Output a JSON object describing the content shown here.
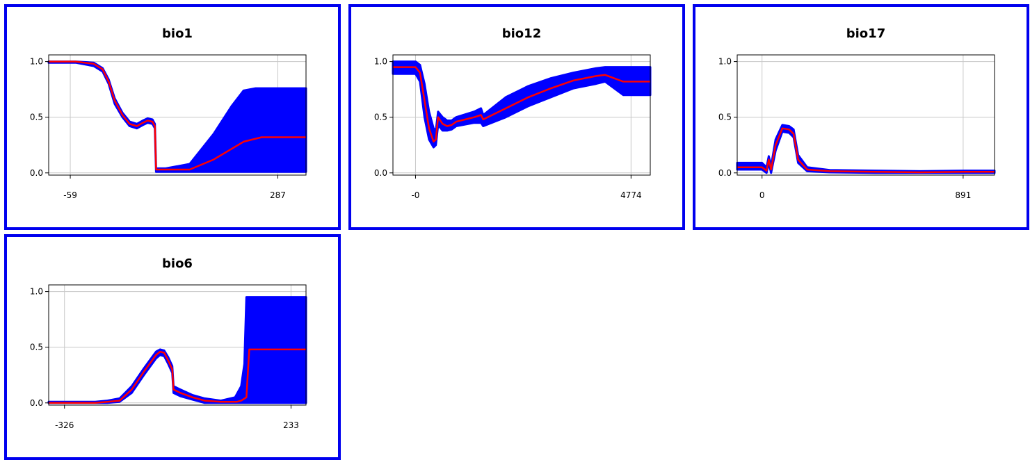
{
  "chart_data": [
    {
      "type": "area",
      "title": "bio1",
      "xlabel": "",
      "ylabel": "",
      "xlim": [
        -95,
        334
      ],
      "ylim": [
        0,
        1.0
      ],
      "yticks": [
        "0.0",
        "0.5",
        "1.0"
      ],
      "xticks": [
        -59,
        287
      ],
      "xtick_labels": [
        "-59",
        "287"
      ],
      "grid": true,
      "series": [
        {
          "role": "mean",
          "color": "#ff0000",
          "points": [
            [
              -95,
              1.0
            ],
            [
              -50,
              1.0
            ],
            [
              -20,
              0.98
            ],
            [
              -5,
              0.93
            ],
            [
              5,
              0.82
            ],
            [
              15,
              0.65
            ],
            [
              28,
              0.52
            ],
            [
              40,
              0.44
            ],
            [
              52,
              0.42
            ],
            [
              62,
              0.45
            ],
            [
              70,
              0.47
            ],
            [
              78,
              0.46
            ],
            [
              82,
              0.42
            ],
            [
              84,
              0.03
            ],
            [
              100,
              0.03
            ],
            [
              140,
              0.03
            ],
            [
              180,
              0.12
            ],
            [
              230,
              0.28
            ],
            [
              260,
              0.32
            ],
            [
              334,
              0.32
            ]
          ]
        },
        {
          "role": "band_upper",
          "color": "#0000ff",
          "points": [
            [
              -95,
              1.0
            ],
            [
              -50,
              1.0
            ],
            [
              -20,
              0.99
            ],
            [
              -5,
              0.94
            ],
            [
              5,
              0.84
            ],
            [
              15,
              0.67
            ],
            [
              28,
              0.54
            ],
            [
              40,
              0.46
            ],
            [
              52,
              0.44
            ],
            [
              62,
              0.47
            ],
            [
              70,
              0.49
            ],
            [
              78,
              0.48
            ],
            [
              82,
              0.44
            ],
            [
              84,
              0.04
            ],
            [
              100,
              0.04
            ],
            [
              140,
              0.08
            ],
            [
              180,
              0.35
            ],
            [
              210,
              0.6
            ],
            [
              230,
              0.74
            ],
            [
              250,
              0.76
            ],
            [
              334,
              0.76
            ]
          ]
        },
        {
          "role": "band_lower",
          "color": "#0000ff",
          "points": [
            [
              -95,
              0.99
            ],
            [
              -50,
              0.99
            ],
            [
              -20,
              0.96
            ],
            [
              -5,
              0.91
            ],
            [
              5,
              0.8
            ],
            [
              15,
              0.62
            ],
            [
              28,
              0.5
            ],
            [
              40,
              0.42
            ],
            [
              52,
              0.4
            ],
            [
              62,
              0.43
            ],
            [
              70,
              0.45
            ],
            [
              78,
              0.44
            ],
            [
              82,
              0.4
            ],
            [
              84,
              0.01
            ],
            [
              334,
              0.01
            ]
          ]
        }
      ]
    },
    {
      "type": "area",
      "title": "bio12",
      "xlabel": "",
      "ylabel": "",
      "xlim": [
        -500,
        5200
      ],
      "ylim": [
        0,
        1.0
      ],
      "yticks": [
        "0.0",
        "0.5",
        "1.0"
      ],
      "xticks": [
        0,
        4774
      ],
      "xtick_labels": [
        "-0",
        "4774"
      ],
      "grid": true,
      "series": [
        {
          "role": "mean",
          "color": "#ff0000",
          "points": [
            [
              -500,
              0.95
            ],
            [
              0,
              0.95
            ],
            [
              100,
              0.9
            ],
            [
              200,
              0.65
            ],
            [
              300,
              0.4
            ],
            [
              400,
              0.28
            ],
            [
              450,
              0.3
            ],
            [
              500,
              0.5
            ],
            [
              600,
              0.44
            ],
            [
              700,
              0.42
            ],
            [
              800,
              0.43
            ],
            [
              900,
              0.46
            ],
            [
              1300,
              0.5
            ],
            [
              1450,
              0.52
            ],
            [
              1500,
              0.48
            ],
            [
              2000,
              0.58
            ],
            [
              2500,
              0.68
            ],
            [
              3000,
              0.76
            ],
            [
              3500,
              0.83
            ],
            [
              4000,
              0.87
            ],
            [
              4200,
              0.88
            ],
            [
              4600,
              0.82
            ],
            [
              5200,
              0.82
            ]
          ]
        },
        {
          "role": "band_upper",
          "color": "#0000ff",
          "points": [
            [
              -500,
              1.0
            ],
            [
              0,
              1.0
            ],
            [
              100,
              0.97
            ],
            [
              200,
              0.8
            ],
            [
              300,
              0.55
            ],
            [
              400,
              0.4
            ],
            [
              450,
              0.38
            ],
            [
              500,
              0.55
            ],
            [
              600,
              0.5
            ],
            [
              700,
              0.47
            ],
            [
              800,
              0.47
            ],
            [
              900,
              0.5
            ],
            [
              1300,
              0.55
            ],
            [
              1450,
              0.58
            ],
            [
              1500,
              0.52
            ],
            [
              2000,
              0.68
            ],
            [
              2500,
              0.78
            ],
            [
              3000,
              0.85
            ],
            [
              3500,
              0.9
            ],
            [
              4000,
              0.94
            ],
            [
              4200,
              0.95
            ],
            [
              4600,
              0.95
            ],
            [
              5200,
              0.95
            ]
          ]
        },
        {
          "role": "band_lower",
          "color": "#0000ff",
          "points": [
            [
              -500,
              0.89
            ],
            [
              0,
              0.89
            ],
            [
              100,
              0.82
            ],
            [
              200,
              0.5
            ],
            [
              300,
              0.3
            ],
            [
              400,
              0.23
            ],
            [
              450,
              0.25
            ],
            [
              500,
              0.43
            ],
            [
              600,
              0.38
            ],
            [
              700,
              0.38
            ],
            [
              800,
              0.39
            ],
            [
              900,
              0.42
            ],
            [
              1300,
              0.45
            ],
            [
              1450,
              0.45
            ],
            [
              1500,
              0.42
            ],
            [
              2000,
              0.5
            ],
            [
              2500,
              0.6
            ],
            [
              3000,
              0.68
            ],
            [
              3500,
              0.76
            ],
            [
              4000,
              0.8
            ],
            [
              4200,
              0.82
            ],
            [
              4600,
              0.7
            ],
            [
              5200,
              0.7
            ]
          ]
        }
      ]
    },
    {
      "type": "area",
      "title": "bio17",
      "xlabel": "",
      "ylabel": "",
      "xlim": [
        -110,
        1030
      ],
      "ylim": [
        0,
        1.0
      ],
      "yticks": [
        "0.0",
        "0.5",
        "1.0"
      ],
      "xticks": [
        0,
        891
      ],
      "xtick_labels": [
        "0",
        "891"
      ],
      "grid": true,
      "series": [
        {
          "role": "mean",
          "color": "#ff0000",
          "points": [
            [
              -110,
              0.05
            ],
            [
              0,
              0.05
            ],
            [
              20,
              0.02
            ],
            [
              30,
              0.12
            ],
            [
              40,
              0.03
            ],
            [
              60,
              0.25
            ],
            [
              90,
              0.4
            ],
            [
              120,
              0.39
            ],
            [
              140,
              0.35
            ],
            [
              160,
              0.12
            ],
            [
              200,
              0.03
            ],
            [
              300,
              0.015
            ],
            [
              500,
              0.01
            ],
            [
              700,
              0.005
            ],
            [
              900,
              0.01
            ],
            [
              1030,
              0.01
            ]
          ]
        },
        {
          "role": "band_upper",
          "color": "#0000ff",
          "points": [
            [
              -110,
              0.09
            ],
            [
              0,
              0.09
            ],
            [
              20,
              0.05
            ],
            [
              30,
              0.15
            ],
            [
              40,
              0.06
            ],
            [
              60,
              0.3
            ],
            [
              90,
              0.43
            ],
            [
              120,
              0.42
            ],
            [
              140,
              0.39
            ],
            [
              160,
              0.16
            ],
            [
              200,
              0.05
            ],
            [
              300,
              0.025
            ],
            [
              500,
              0.02
            ],
            [
              700,
              0.015
            ],
            [
              900,
              0.02
            ],
            [
              1030,
              0.02
            ]
          ]
        },
        {
          "role": "band_lower",
          "color": "#0000ff",
          "points": [
            [
              -110,
              0.03
            ],
            [
              0,
              0.03
            ],
            [
              20,
              0.0
            ],
            [
              30,
              0.09
            ],
            [
              40,
              0.0
            ],
            [
              60,
              0.2
            ],
            [
              90,
              0.37
            ],
            [
              120,
              0.36
            ],
            [
              140,
              0.32
            ],
            [
              160,
              0.09
            ],
            [
              200,
              0.015
            ],
            [
              300,
              0.005
            ],
            [
              500,
              0.0
            ],
            [
              700,
              0.0
            ],
            [
              900,
              0.0
            ],
            [
              1030,
              0.0
            ]
          ]
        }
      ]
    },
    {
      "type": "area",
      "title": "bio6",
      "xlabel": "",
      "ylabel": "",
      "xlim": [
        -365,
        270
      ],
      "ylim": [
        0,
        1.0
      ],
      "yticks": [
        "0.0",
        "0.5",
        "1.0"
      ],
      "xticks": [
        -326,
        233
      ],
      "xtick_labels": [
        "-326",
        "233"
      ],
      "grid": true,
      "series": [
        {
          "role": "mean",
          "color": "#ff0000",
          "points": [
            [
              -365,
              0.0
            ],
            [
              -250,
              0.0
            ],
            [
              -220,
              0.01
            ],
            [
              -190,
              0.02
            ],
            [
              -160,
              0.12
            ],
            [
              -130,
              0.28
            ],
            [
              -100,
              0.43
            ],
            [
              -90,
              0.46
            ],
            [
              -80,
              0.45
            ],
            [
              -70,
              0.38
            ],
            [
              -60,
              0.3
            ],
            [
              -57,
              0.12
            ],
            [
              -40,
              0.09
            ],
            [
              -10,
              0.05
            ],
            [
              20,
              0.02
            ],
            [
              60,
              0.01
            ],
            [
              100,
              0.01
            ],
            [
              110,
              0.02
            ],
            [
              123,
              0.05
            ],
            [
              130,
              0.48
            ],
            [
              160,
              0.48
            ],
            [
              270,
              0.48
            ]
          ]
        },
        {
          "role": "band_upper",
          "color": "#0000ff",
          "points": [
            [
              -365,
              0.01
            ],
            [
              -250,
              0.01
            ],
            [
              -220,
              0.02
            ],
            [
              -190,
              0.04
            ],
            [
              -160,
              0.15
            ],
            [
              -130,
              0.31
            ],
            [
              -100,
              0.46
            ],
            [
              -90,
              0.48
            ],
            [
              -80,
              0.47
            ],
            [
              -70,
              0.41
            ],
            [
              -60,
              0.33
            ],
            [
              -57,
              0.15
            ],
            [
              -40,
              0.12
            ],
            [
              -10,
              0.07
            ],
            [
              20,
              0.04
            ],
            [
              60,
              0.02
            ],
            [
              95,
              0.05
            ],
            [
              110,
              0.15
            ],
            [
              118,
              0.35
            ],
            [
              123,
              0.95
            ],
            [
              160,
              0.95
            ],
            [
              270,
              0.95
            ]
          ]
        },
        {
          "role": "band_lower",
          "color": "#0000ff",
          "points": [
            [
              -365,
              0.0
            ],
            [
              -250,
              0.0
            ],
            [
              -220,
              0.0
            ],
            [
              -190,
              0.01
            ],
            [
              -160,
              0.09
            ],
            [
              -130,
              0.25
            ],
            [
              -100,
              0.4
            ],
            [
              -90,
              0.43
            ],
            [
              -80,
              0.42
            ],
            [
              -70,
              0.35
            ],
            [
              -60,
              0.27
            ],
            [
              -57,
              0.09
            ],
            [
              -40,
              0.06
            ],
            [
              -10,
              0.03
            ],
            [
              20,
              0.0
            ],
            [
              60,
              0.0
            ],
            [
              100,
              0.0
            ],
            [
              123,
              0.0
            ],
            [
              160,
              0.0
            ],
            [
              270,
              0.0
            ]
          ]
        }
      ]
    }
  ]
}
